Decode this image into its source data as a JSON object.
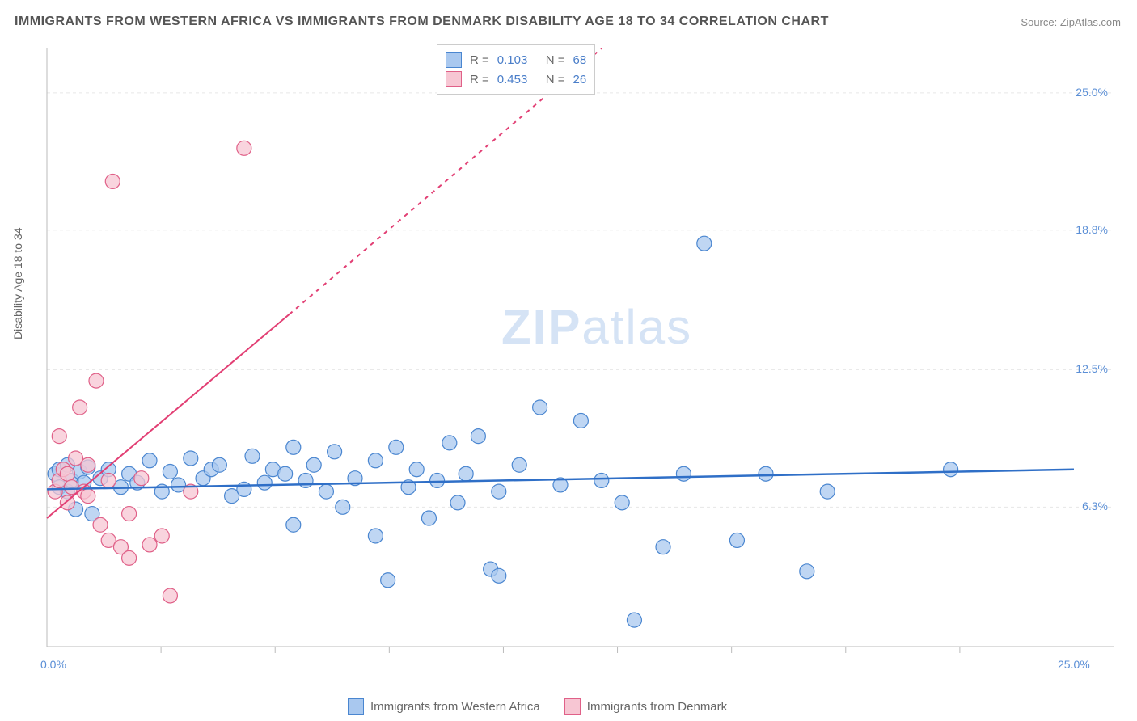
{
  "title": "IMMIGRANTS FROM WESTERN AFRICA VS IMMIGRANTS FROM DENMARK DISABILITY AGE 18 TO 34 CORRELATION CHART",
  "source_label": "Source:",
  "source_name": "ZipAtlas.com",
  "y_axis_label": "Disability Age 18 to 34",
  "watermark_zip": "ZIP",
  "watermark_atlas": "atlas",
  "chart": {
    "type": "scatter",
    "xlim": [
      0,
      25
    ],
    "ylim": [
      0,
      27
    ],
    "x_ticks": [
      {
        "v": 0.0,
        "l": "0.0%"
      },
      {
        "v": 25.0,
        "l": "25.0%"
      }
    ],
    "y_ticks": [
      {
        "v": 6.3,
        "l": "6.3%"
      },
      {
        "v": 12.5,
        "l": "12.5%"
      },
      {
        "v": 18.8,
        "l": "18.8%"
      },
      {
        "v": 25.0,
        "l": "25.0%"
      }
    ],
    "grid_color": "#e6e6e6",
    "axis_color": "#bbbbbb",
    "background_color": "#ffffff",
    "legend_top": [
      {
        "swatch_fill": "#a9c8ef",
        "swatch_stroke": "#4a86d0",
        "r_label": "R =",
        "r_value": "0.103",
        "n_label": "N =",
        "n_value": "68"
      },
      {
        "swatch_fill": "#f7c6d3",
        "swatch_stroke": "#e06088",
        "r_label": "R =",
        "r_value": "0.453",
        "n_label": "N =",
        "n_value": "26"
      }
    ],
    "legend_bottom": [
      {
        "swatch_fill": "#a9c8ef",
        "swatch_stroke": "#4a86d0",
        "label": "Immigrants from Western Africa"
      },
      {
        "swatch_fill": "#f7c6d3",
        "swatch_stroke": "#e06088",
        "label": "Immigrants from Denmark"
      }
    ],
    "series": [
      {
        "name": "western_africa",
        "marker_fill": "#a9c8ef",
        "marker_stroke": "#4a86d0",
        "marker_radius": 9,
        "trend_color": "#2f6fc7",
        "trend_width": 2.5,
        "trend": {
          "x1": 0,
          "y1": 7.1,
          "x2": 25,
          "y2": 8.0
        },
        "points": [
          [
            0.2,
            7.8
          ],
          [
            0.3,
            7.2
          ],
          [
            0.3,
            8.0
          ],
          [
            0.5,
            7.0
          ],
          [
            0.5,
            8.2
          ],
          [
            0.6,
            7.5
          ],
          [
            0.7,
            6.2
          ],
          [
            0.8,
            7.9
          ],
          [
            0.9,
            7.4
          ],
          [
            1.0,
            8.1
          ],
          [
            1.1,
            6.0
          ],
          [
            1.3,
            7.6
          ],
          [
            1.5,
            8.0
          ],
          [
            1.8,
            7.2
          ],
          [
            2.0,
            7.8
          ],
          [
            2.2,
            7.4
          ],
          [
            2.5,
            8.4
          ],
          [
            2.8,
            7.0
          ],
          [
            3.0,
            7.9
          ],
          [
            3.2,
            7.3
          ],
          [
            3.5,
            8.5
          ],
          [
            3.8,
            7.6
          ],
          [
            4.0,
            8.0
          ],
          [
            4.2,
            8.2
          ],
          [
            4.5,
            6.8
          ],
          [
            4.8,
            7.1
          ],
          [
            5.0,
            8.6
          ],
          [
            5.3,
            7.4
          ],
          [
            5.5,
            8.0
          ],
          [
            5.8,
            7.8
          ],
          [
            6.0,
            5.5
          ],
          [
            6.0,
            9.0
          ],
          [
            6.3,
            7.5
          ],
          [
            6.5,
            8.2
          ],
          [
            6.8,
            7.0
          ],
          [
            7.0,
            8.8
          ],
          [
            7.2,
            6.3
          ],
          [
            7.5,
            7.6
          ],
          [
            8.0,
            8.4
          ],
          [
            8.0,
            5.0
          ],
          [
            8.3,
            3.0
          ],
          [
            8.5,
            9.0
          ],
          [
            8.8,
            7.2
          ],
          [
            9.0,
            8.0
          ],
          [
            9.3,
            5.8
          ],
          [
            9.5,
            7.5
          ],
          [
            9.8,
            9.2
          ],
          [
            10.0,
            6.5
          ],
          [
            10.2,
            7.8
          ],
          [
            10.5,
            9.5
          ],
          [
            10.8,
            3.5
          ],
          [
            11.0,
            7.0
          ],
          [
            11.0,
            3.2
          ],
          [
            11.5,
            8.2
          ],
          [
            12.0,
            10.8
          ],
          [
            12.5,
            7.3
          ],
          [
            13.0,
            10.2
          ],
          [
            13.5,
            7.5
          ],
          [
            14.0,
            6.5
          ],
          [
            14.3,
            1.2
          ],
          [
            15.0,
            4.5
          ],
          [
            15.5,
            7.8
          ],
          [
            16.0,
            18.2
          ],
          [
            17.5,
            7.8
          ],
          [
            18.5,
            3.4
          ],
          [
            19.0,
            7.0
          ],
          [
            22.0,
            8.0
          ],
          [
            16.8,
            4.8
          ]
        ]
      },
      {
        "name": "denmark",
        "marker_fill": "#f7c6d3",
        "marker_stroke": "#e06088",
        "marker_radius": 9,
        "trend_color": "#e23f74",
        "trend_width": 2,
        "trend": {
          "x1": 0,
          "y1": 5.8,
          "x2": 5.9,
          "y2": 15.0
        },
        "trend_dash": {
          "x1": 5.9,
          "y1": 15.0,
          "x2": 13.5,
          "y2": 27.0
        },
        "points": [
          [
            0.2,
            7.0
          ],
          [
            0.3,
            9.5
          ],
          [
            0.3,
            7.5
          ],
          [
            0.4,
            8.0
          ],
          [
            0.5,
            7.8
          ],
          [
            0.5,
            6.5
          ],
          [
            0.6,
            7.2
          ],
          [
            0.7,
            8.5
          ],
          [
            0.8,
            10.8
          ],
          [
            0.9,
            7.0
          ],
          [
            1.0,
            6.8
          ],
          [
            1.0,
            8.2
          ],
          [
            1.2,
            12.0
          ],
          [
            1.3,
            5.5
          ],
          [
            1.5,
            4.8
          ],
          [
            1.5,
            7.5
          ],
          [
            1.8,
            4.5
          ],
          [
            2.0,
            6.0
          ],
          [
            2.0,
            4.0
          ],
          [
            2.3,
            7.6
          ],
          [
            2.5,
            4.6
          ],
          [
            2.8,
            5.0
          ],
          [
            3.0,
            2.3
          ],
          [
            3.5,
            7.0
          ],
          [
            1.6,
            21.0
          ],
          [
            4.8,
            22.5
          ]
        ]
      }
    ]
  }
}
